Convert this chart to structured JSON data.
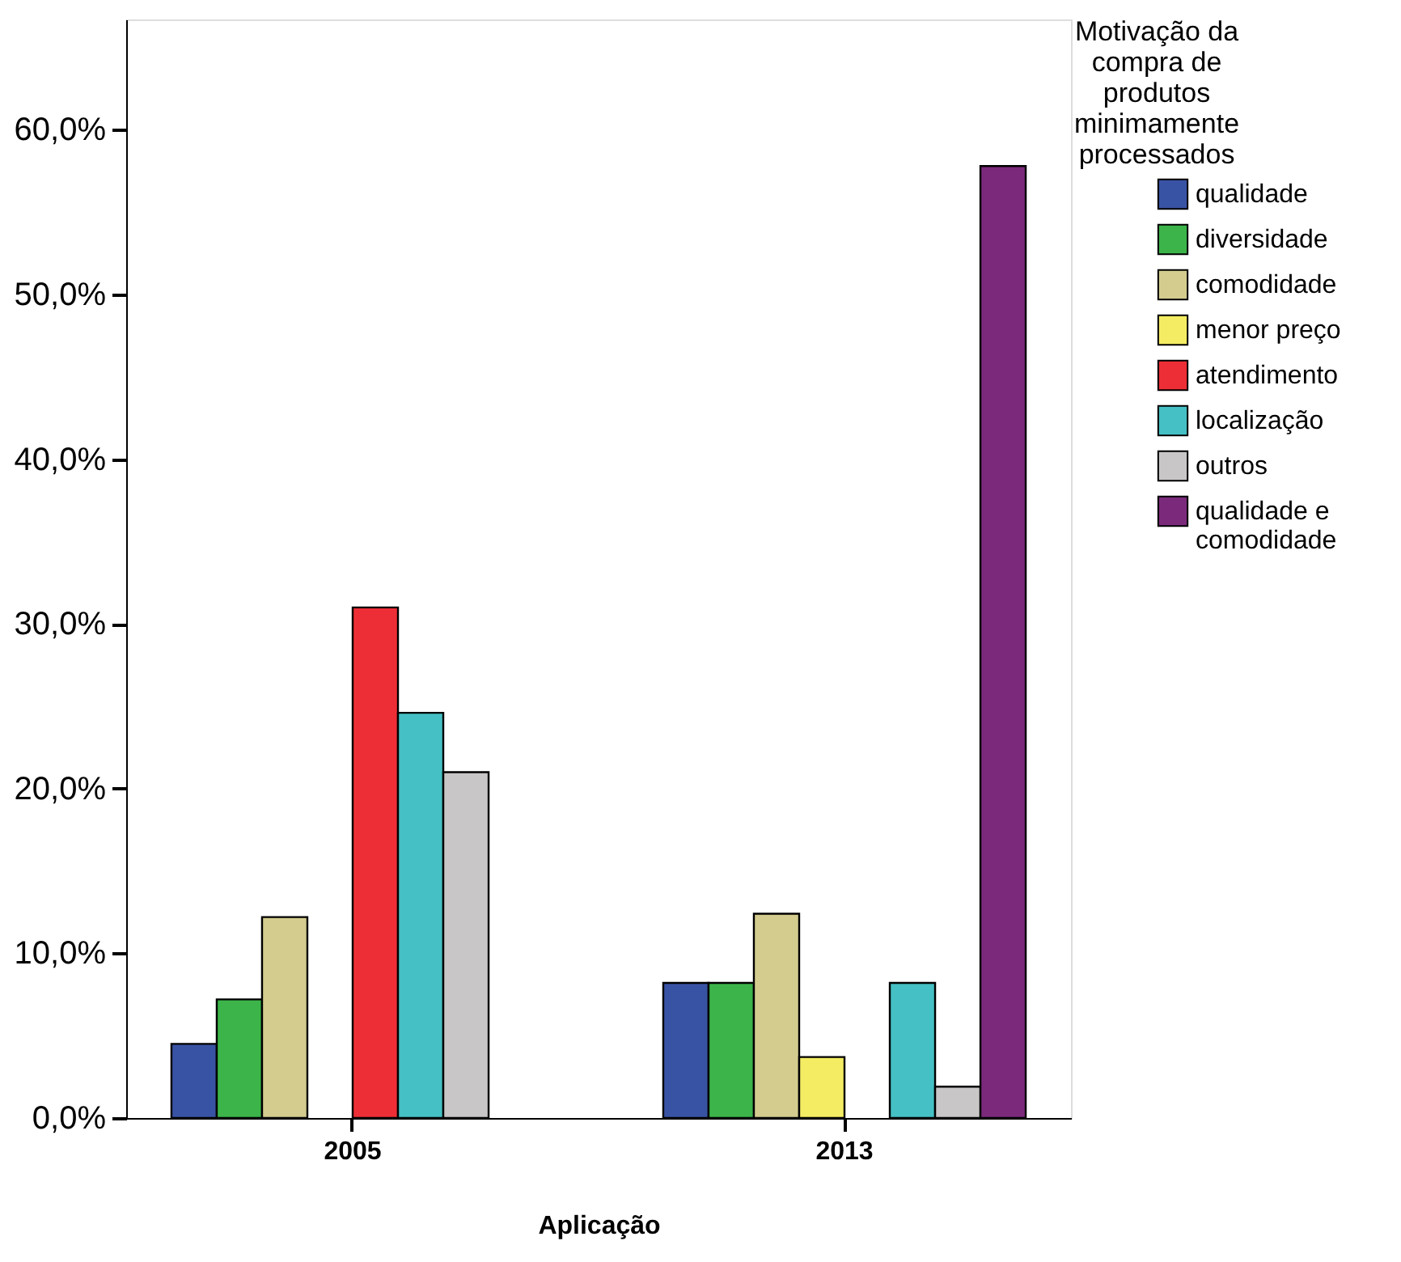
{
  "chart_data": {
    "type": "bar",
    "xlabel": "Aplicação",
    "legend_title": "Motivação da compra de produtos minimamente processados",
    "categories": [
      "2005",
      "2013"
    ],
    "series": [
      {
        "name": "qualidade",
        "color": "#3953a4",
        "values": [
          4.5,
          8.2
        ]
      },
      {
        "name": "diversidade",
        "color": "#3cb44a",
        "values": [
          7.2,
          8.2
        ]
      },
      {
        "name": "comodidade",
        "color": "#d3cc8e",
        "values": [
          12.2,
          12.4
        ]
      },
      {
        "name": "menor preço",
        "color": "#f4ec63",
        "values": [
          null,
          3.7
        ]
      },
      {
        "name": "atendimento",
        "color": "#ee2e36",
        "values": [
          31.0,
          null
        ]
      },
      {
        "name": "localização",
        "color": "#45c0c4",
        "values": [
          24.6,
          8.2
        ]
      },
      {
        "name": "outros",
        "color": "#c8c6c6",
        "values": [
          21.0,
          1.9
        ]
      },
      {
        "name": "qualidade e comodidade",
        "color": "#7b2a7b",
        "values": [
          null,
          57.8
        ]
      }
    ],
    "ylim": [
      0,
      66.7
    ],
    "yticks": [
      {
        "value": 0,
        "label": "0,0%"
      },
      {
        "value": 10,
        "label": "10,0%"
      },
      {
        "value": 20,
        "label": "20,0%"
      },
      {
        "value": 30,
        "label": "30,0%"
      },
      {
        "value": 40,
        "label": "40,0%"
      },
      {
        "value": 50,
        "label": "50,0%"
      },
      {
        "value": 60,
        "label": "60,0%"
      }
    ],
    "grid": false,
    "legend": "right"
  }
}
